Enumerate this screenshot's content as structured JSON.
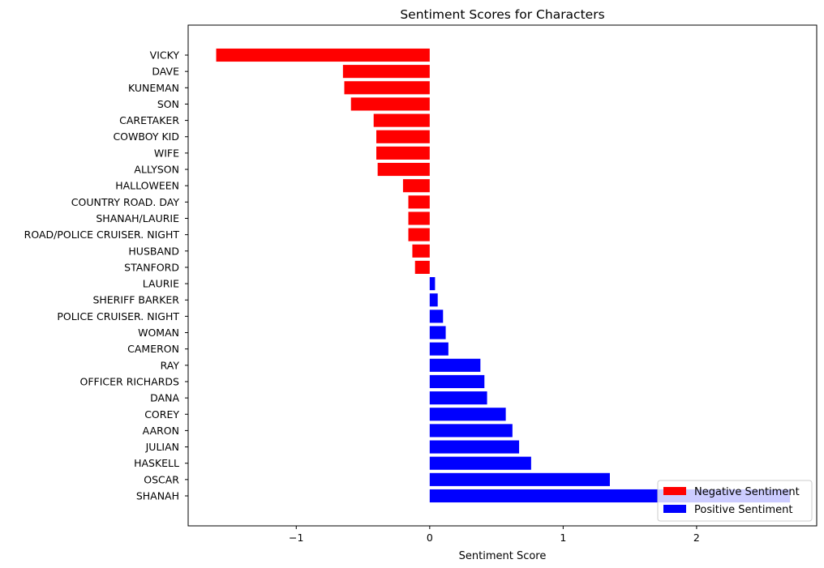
{
  "chart_data": {
    "type": "bar",
    "orientation": "horizontal",
    "title": "Sentiment Scores for Characters",
    "xlabel": "Sentiment Score",
    "ylabel": "",
    "xlim": [
      -1.81,
      2.9
    ],
    "xticks": [
      -1,
      0,
      1,
      2
    ],
    "xtick_labels": [
      "−1",
      "0",
      "1",
      "2"
    ],
    "grid": false,
    "legend_position": "bottom-right",
    "categories": [
      "VICKY",
      "DAVE",
      "KUNEMAN",
      "SON",
      "CARETAKER",
      "COWBOY KID",
      "WIFE",
      "ALLYSON",
      "HALLOWEEN",
      "COUNTRY ROAD. DAY",
      "SHANAH/LAURIE",
      "ROAD/POLICE CRUISER. NIGHT",
      "HUSBAND",
      "STANFORD",
      "LAURIE",
      "SHERIFF BARKER",
      "POLICE CRUISER. NIGHT",
      "WOMAN",
      "CAMERON",
      "RAY",
      "OFFICER RICHARDS",
      "DANA",
      "COREY",
      "AARON",
      "JULIAN",
      "HASKELL",
      "OSCAR",
      "SHANAH"
    ],
    "values": [
      -1.6,
      -0.65,
      -0.64,
      -0.59,
      -0.42,
      -0.4,
      -0.4,
      -0.39,
      -0.2,
      -0.16,
      -0.16,
      -0.16,
      -0.13,
      -0.11,
      0.04,
      0.06,
      0.1,
      0.12,
      0.14,
      0.38,
      0.41,
      0.43,
      0.57,
      0.62,
      0.67,
      0.76,
      1.35,
      2.7
    ],
    "series": [
      {
        "name": "Negative Sentiment",
        "color": "#ff0000"
      },
      {
        "name": "Positive Sentiment",
        "color": "#0000ff"
      }
    ]
  }
}
